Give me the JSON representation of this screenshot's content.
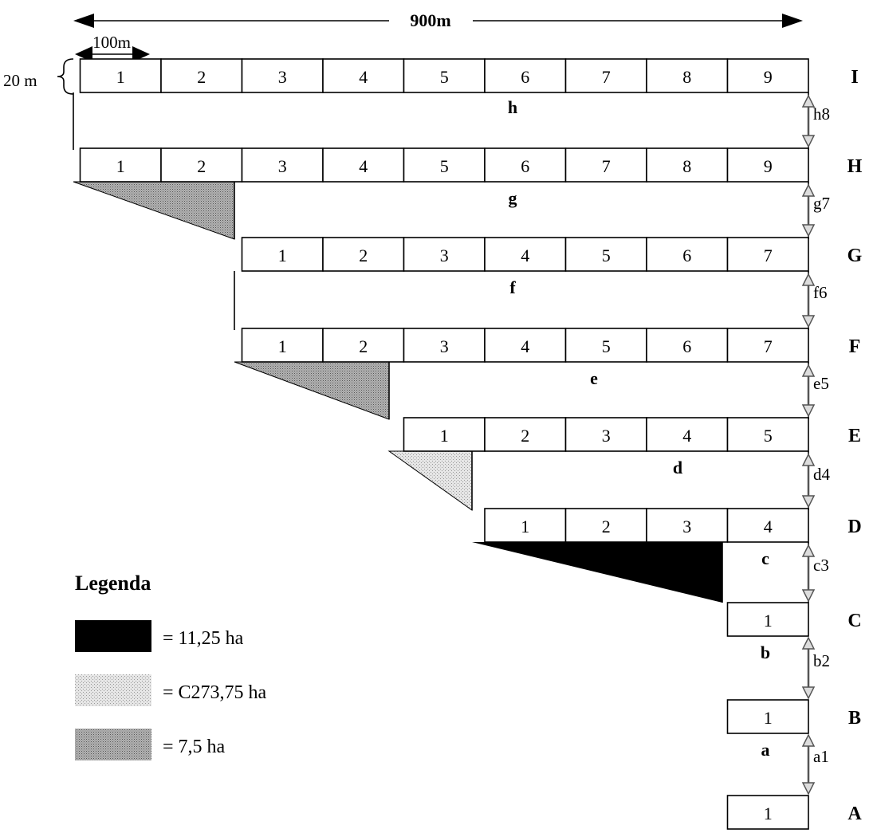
{
  "dimensions": {
    "total_width": "900m",
    "cell_width": "100m",
    "row_height": "20 m"
  },
  "rows": [
    {
      "letter": "I",
      "cells": [
        "1",
        "2",
        "3",
        "4",
        "5",
        "6",
        "7",
        "8",
        "9"
      ]
    },
    {
      "letter": "H",
      "cells": [
        "1",
        "2",
        "3",
        "4",
        "5",
        "6",
        "7",
        "8",
        "9"
      ]
    },
    {
      "letter": "G",
      "cells": [
        "1",
        "2",
        "3",
        "4",
        "5",
        "6",
        "7"
      ]
    },
    {
      "letter": "F",
      "cells": [
        "1",
        "2",
        "3",
        "4",
        "5",
        "6",
        "7"
      ]
    },
    {
      "letter": "E",
      "cells": [
        "1",
        "2",
        "3",
        "4",
        "5"
      ]
    },
    {
      "letter": "D",
      "cells": [
        "1",
        "2",
        "3",
        "4"
      ]
    },
    {
      "letter": "C",
      "cells": [
        "1"
      ]
    },
    {
      "letter": "B",
      "cells": [
        "1"
      ]
    },
    {
      "letter": "A",
      "cells": [
        "1"
      ]
    }
  ],
  "gaps": [
    {
      "letter": "h",
      "label": "h8"
    },
    {
      "letter": "g",
      "label": "g7"
    },
    {
      "letter": "f",
      "label": "f6"
    },
    {
      "letter": "e",
      "label": "e5"
    },
    {
      "letter": "d",
      "label": "d4"
    },
    {
      "letter": "c",
      "label": "c3"
    },
    {
      "letter": "b",
      "label": "b2"
    },
    {
      "letter": "a",
      "label": "a1"
    }
  ],
  "legend": {
    "title": "Legenda",
    "items": [
      {
        "text": "= 11,25 ha",
        "color": "#000000"
      },
      {
        "text": "= C273,75 ha",
        "color": "#d9d9d9"
      },
      {
        "text": "= 7,5 ha",
        "color": "#a6a6a6"
      }
    ]
  },
  "colors": {
    "black_fill": "#000000",
    "light_fill": "#d9d9d9",
    "medium_fill": "#a6a6a6"
  }
}
